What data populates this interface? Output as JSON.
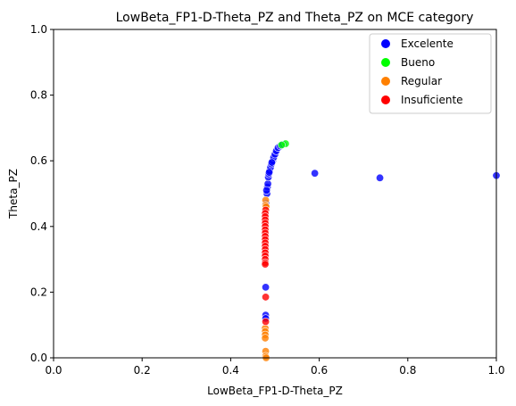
{
  "chart_data": {
    "type": "scatter",
    "title": "LowBeta_FP1-D-Theta_PZ and Theta_PZ on MCE category",
    "xlabel": "LowBeta_FP1-D-Theta_PZ",
    "ylabel": "Theta_PZ",
    "xlim": [
      0,
      1
    ],
    "ylim": [
      0,
      1
    ],
    "xticks": [
      "0.0",
      "0.2",
      "0.4",
      "0.6",
      "0.8",
      "1.0"
    ],
    "yticks": [
      "0.0",
      "0.2",
      "0.4",
      "0.6",
      "0.8",
      "1.0"
    ],
    "grid": false,
    "legend_position": "top-right",
    "series": [
      {
        "name": "Excelente",
        "color": "#0000ff",
        "points": [
          [
            0.48,
            0.47
          ],
          [
            0.482,
            0.5
          ],
          [
            0.483,
            0.52
          ],
          [
            0.484,
            0.53
          ],
          [
            0.485,
            0.55
          ],
          [
            0.486,
            0.56
          ],
          [
            0.488,
            0.57
          ],
          [
            0.49,
            0.58
          ],
          [
            0.492,
            0.59
          ],
          [
            0.495,
            0.6
          ],
          [
            0.497,
            0.61
          ],
          [
            0.5,
            0.62
          ],
          [
            0.503,
            0.63
          ],
          [
            0.507,
            0.64
          ],
          [
            0.512,
            0.645
          ],
          [
            0.518,
            0.65
          ],
          [
            0.481,
            0.51
          ],
          [
            0.487,
            0.565
          ],
          [
            0.493,
            0.595
          ],
          [
            0.59,
            0.562
          ],
          [
            0.737,
            0.548
          ],
          [
            1.0,
            0.555
          ],
          [
            0.479,
            0.215
          ],
          [
            0.479,
            0.13
          ],
          [
            0.479,
            0.12
          ]
        ]
      },
      {
        "name": "Bueno",
        "color": "#00ff00",
        "points": [
          [
            0.524,
            0.652
          ],
          [
            0.515,
            0.648
          ]
        ]
      },
      {
        "name": "Regular",
        "color": "#ff8000",
        "points": [
          [
            0.479,
            0.48
          ],
          [
            0.479,
            0.465
          ],
          [
            0.48,
            0.46
          ],
          [
            0.478,
            0.09
          ],
          [
            0.478,
            0.08
          ],
          [
            0.478,
            0.07
          ],
          [
            0.478,
            0.06
          ],
          [
            0.479,
            0.02
          ],
          [
            0.479,
            0.005
          ],
          [
            0.48,
            0.0
          ]
        ]
      },
      {
        "name": "Insuficiente",
        "color": "#ff0000",
        "points": [
          [
            0.479,
            0.45
          ],
          [
            0.478,
            0.44
          ],
          [
            0.478,
            0.43
          ],
          [
            0.478,
            0.42
          ],
          [
            0.478,
            0.41
          ],
          [
            0.478,
            0.4
          ],
          [
            0.478,
            0.39
          ],
          [
            0.478,
            0.38
          ],
          [
            0.478,
            0.37
          ],
          [
            0.478,
            0.36
          ],
          [
            0.478,
            0.35
          ],
          [
            0.478,
            0.34
          ],
          [
            0.478,
            0.33
          ],
          [
            0.478,
            0.32
          ],
          [
            0.478,
            0.31
          ],
          [
            0.478,
            0.3
          ],
          [
            0.478,
            0.29
          ],
          [
            0.478,
            0.285
          ],
          [
            0.479,
            0.185
          ],
          [
            0.479,
            0.11
          ]
        ]
      }
    ]
  }
}
